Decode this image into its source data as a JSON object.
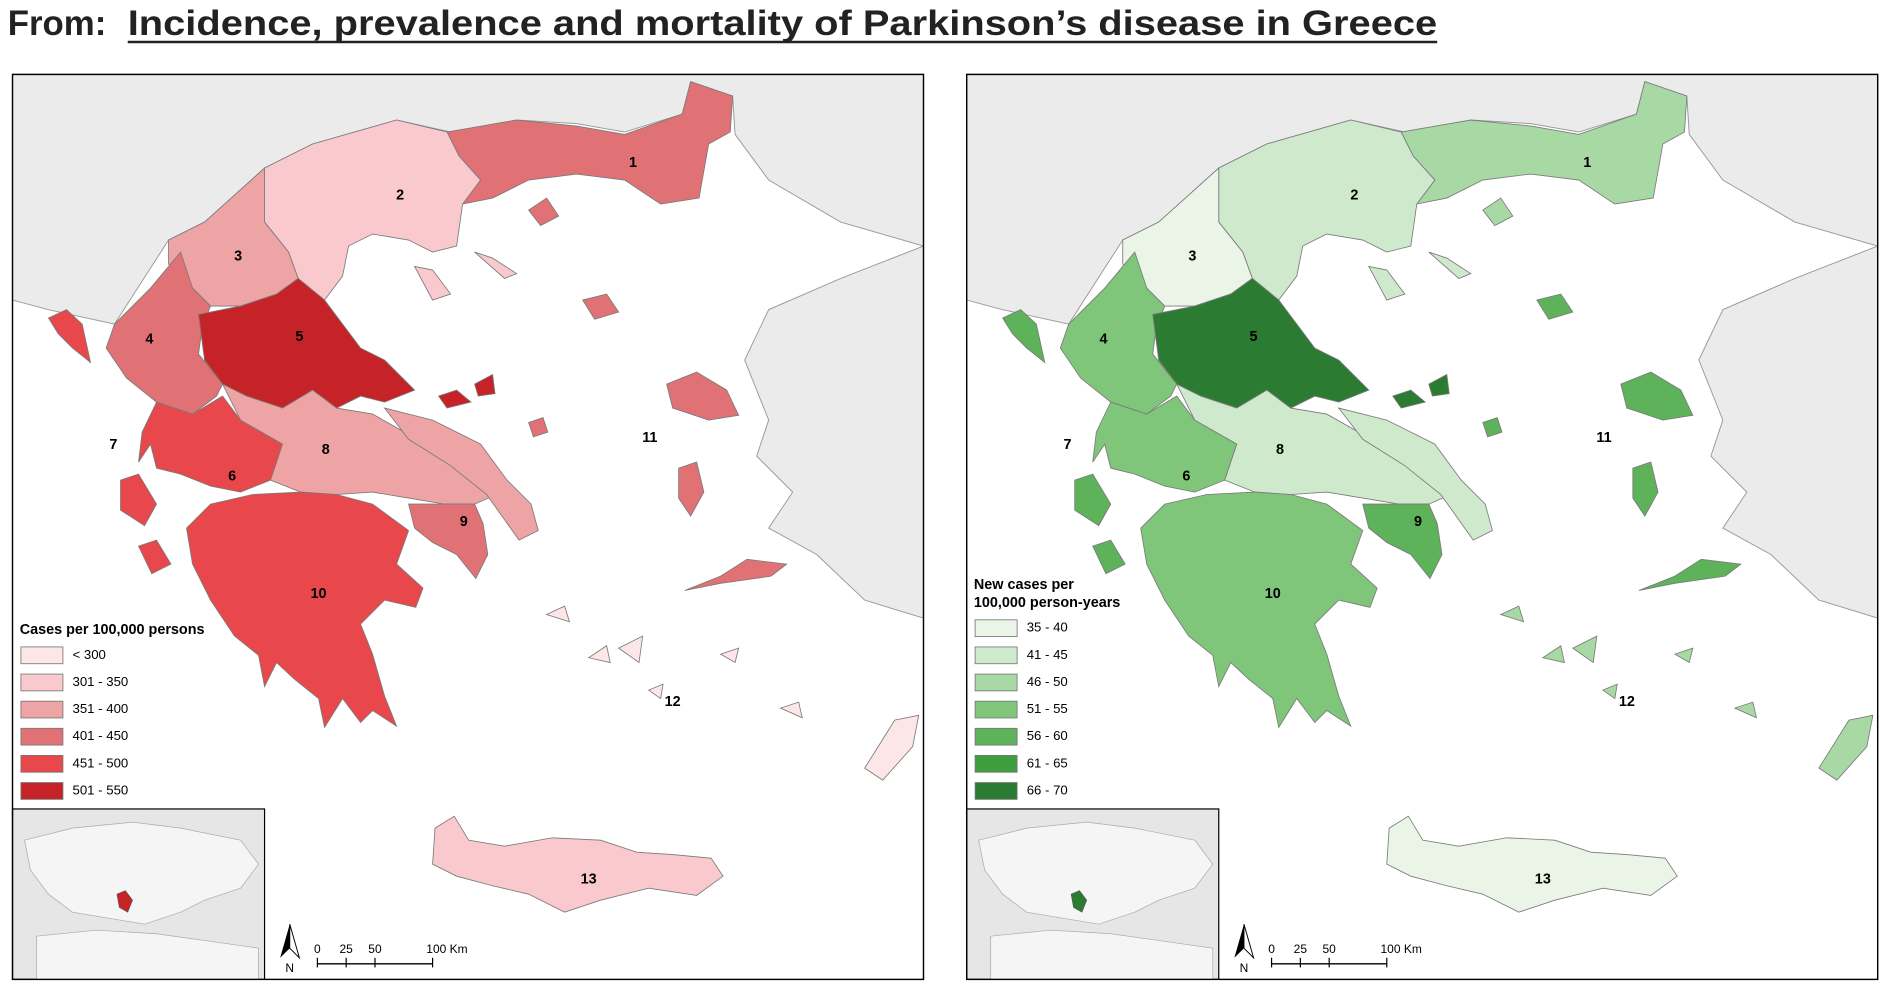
{
  "header": {
    "prefix": "From:",
    "title": "Incidence, prevalence and mortality of Parkinson’s disease in Greece"
  },
  "maps": [
    {
      "legend_title": [
        "Cases per 100,000 persons"
      ],
      "legend": [
        {
          "label": "< 300",
          "color": "#fde6e8"
        },
        {
          "label": "301 - 350",
          "color": "#f9c9cd"
        },
        {
          "label": "351 - 400",
          "color": "#eea3a5"
        },
        {
          "label": "401 - 450",
          "color": "#e07276"
        },
        {
          "label": "451 - 500",
          "color": "#e8484b"
        },
        {
          "label": "501 - 550",
          "color": "#c62328"
        }
      ],
      "regions": [
        {
          "label": "1",
          "color": "#e07276"
        },
        {
          "label": "2",
          "color": "#f9c9cd"
        },
        {
          "label": "3",
          "color": "#eea3a5"
        },
        {
          "label": "4",
          "color": "#e07276"
        },
        {
          "label": "5",
          "color": "#c62328"
        },
        {
          "label": "6",
          "color": "#e8484b"
        },
        {
          "label": "7",
          "color": "#e8484b"
        },
        {
          "label": "8",
          "color": "#eea3a5"
        },
        {
          "label": "9",
          "color": "#e07276"
        },
        {
          "label": "10",
          "color": "#e8484b"
        },
        {
          "label": "11",
          "color": "#e07276"
        },
        {
          "label": "12",
          "color": "#fde6e8"
        },
        {
          "label": "13",
          "color": "#f9c9cd"
        }
      ],
      "scale_bar": {
        "labels": [
          "0",
          "25",
          "50",
          "100 Km"
        ],
        "north": "N"
      }
    },
    {
      "legend_title": [
        "New cases per",
        "100,000 person-years"
      ],
      "legend": [
        {
          "label": "35 - 40",
          "color": "#eaf5e8"
        },
        {
          "label": "41 - 45",
          "color": "#cfe9cc"
        },
        {
          "label": "46 - 50",
          "color": "#a8d8a3"
        },
        {
          "label": "51 - 55",
          "color": "#7fc67a"
        },
        {
          "label": "56 - 60",
          "color": "#5db25a"
        },
        {
          "label": "61 - 65",
          "color": "#3d9e3d"
        },
        {
          "label": "66 - 70",
          "color": "#2b7c32"
        }
      ],
      "regions": [
        {
          "label": "1",
          "color": "#a8d8a3"
        },
        {
          "label": "2",
          "color": "#cfe9cc"
        },
        {
          "label": "3",
          "color": "#eaf5e8"
        },
        {
          "label": "4",
          "color": "#7fc67a"
        },
        {
          "label": "5",
          "color": "#2b7c32"
        },
        {
          "label": "6",
          "color": "#7fc67a"
        },
        {
          "label": "7",
          "color": "#5db25a"
        },
        {
          "label": "8",
          "color": "#cfe9cc"
        },
        {
          "label": "9",
          "color": "#5db25a"
        },
        {
          "label": "10",
          "color": "#7fc67a"
        },
        {
          "label": "11",
          "color": "#5db25a"
        },
        {
          "label": "12",
          "color": "#a8d8a3"
        },
        {
          "label": "13",
          "color": "#eaf5e8"
        }
      ],
      "scale_bar": {
        "labels": [
          "0",
          "25",
          "50",
          "100 Km"
        ],
        "north": "N"
      }
    }
  ]
}
